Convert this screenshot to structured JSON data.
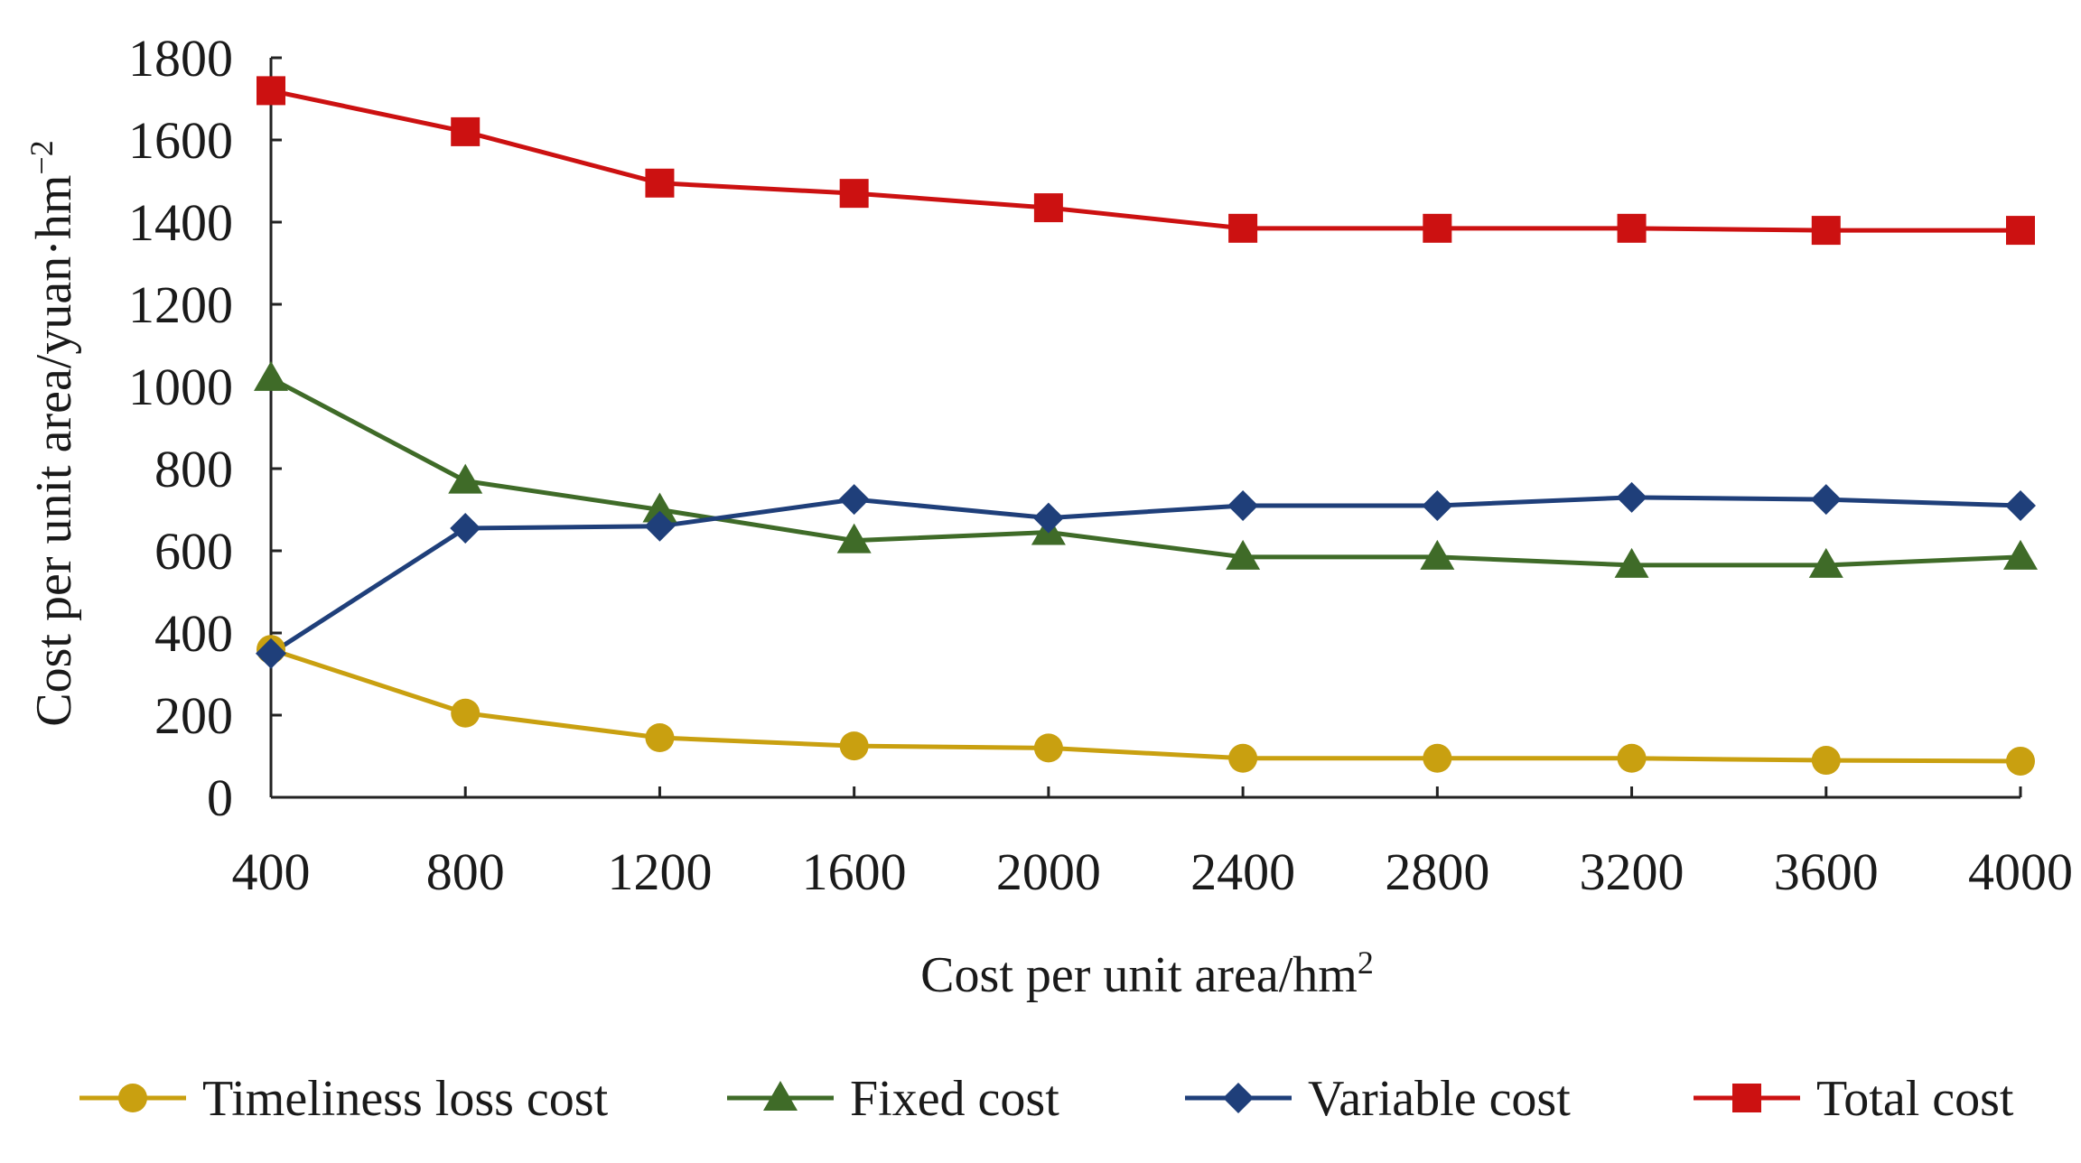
{
  "chart_data": {
    "type": "line",
    "title": "",
    "xlabel": "Cost per unit area/hm",
    "xlabel_superscript": "2",
    "ylabel": "Cost per unit area/yuan·hm",
    "ylabel_superscript": "−2",
    "categories": [
      "400",
      "800",
      "1200",
      "1600",
      "2000",
      "2400",
      "2800",
      "3200",
      "3600",
      "4000"
    ],
    "ylim": [
      0,
      1800
    ],
    "yticks": [
      0,
      200,
      400,
      600,
      800,
      1000,
      1200,
      1400,
      1600,
      1800
    ],
    "grid": false,
    "legend_position": "bottom",
    "series": [
      {
        "name": "Timeliness loss cost",
        "color": "#c9a010",
        "marker": "circle",
        "values": [
          360,
          205,
          145,
          125,
          120,
          95,
          95,
          95,
          90,
          88
        ]
      },
      {
        "name": "Fixed cost",
        "color": "#3f6b28",
        "marker": "triangle",
        "values": [
          1020,
          770,
          700,
          625,
          645,
          585,
          585,
          565,
          565,
          585
        ]
      },
      {
        "name": "Variable cost",
        "color": "#1f3f7a",
        "marker": "diamond",
        "values": [
          350,
          655,
          660,
          725,
          680,
          710,
          710,
          730,
          725,
          710
        ]
      },
      {
        "name": "Total cost",
        "color": "#cc1111",
        "marker": "square",
        "values": [
          1720,
          1620,
          1495,
          1470,
          1435,
          1385,
          1385,
          1385,
          1380,
          1380
        ]
      }
    ]
  }
}
